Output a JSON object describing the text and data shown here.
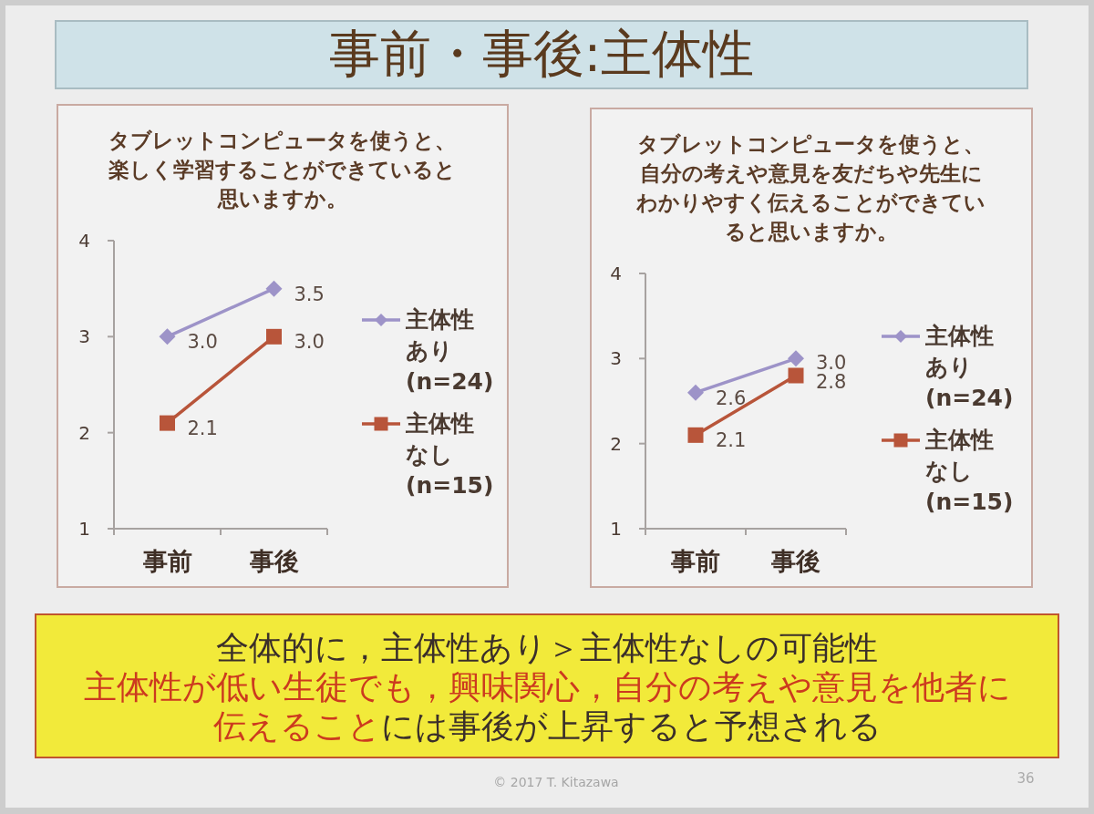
{
  "chart_data": [
    {
      "type": "other",
      "title": "事前・事後:主体性"
    },
    {
      "type": "line",
      "title": "タブレットコンピュータを使うと、楽しく学習することができていると思いますか。",
      "categories": [
        "事前",
        "事後"
      ],
      "series": [
        {
          "name": "主体性あり(n=24)",
          "color": "#9d93c8",
          "marker": "diamond",
          "values": [
            3.0,
            3.5
          ],
          "value_labels": [
            "3.0",
            "3.5"
          ]
        },
        {
          "name": "主体性なし(n=15)",
          "color": "#b8553a",
          "marker": "square",
          "values": [
            2.1,
            3.0
          ],
          "value_labels": [
            "2.1",
            "3.0"
          ]
        }
      ],
      "ylim": [
        1,
        4
      ],
      "yticks": [
        1,
        2,
        3,
        4
      ],
      "legend": "right"
    },
    {
      "type": "line",
      "title": "タブレットコンピュータを使うと、自分の考えや意見を友だちや先生にわかりやすく伝えることができていると思いますか。",
      "categories": [
        "事前",
        "事後"
      ],
      "series": [
        {
          "name": "主体性あり(n=24)",
          "color": "#9d93c8",
          "marker": "diamond",
          "values": [
            2.6,
            3.0
          ],
          "value_labels": [
            "2.6",
            "3.0"
          ]
        },
        {
          "name": "主体性なし(n=15)",
          "color": "#b8553a",
          "marker": "square",
          "values": [
            2.1,
            2.8
          ],
          "value_labels": [
            "2.1",
            "2.8"
          ]
        }
      ],
      "ylim": [
        1,
        4
      ],
      "yticks": [
        1,
        2,
        3,
        4
      ],
      "legend": "right"
    },
    {
      "type": "other",
      "annotations": [
        "全体的に，主体性あり＞主体性なしの可能性",
        "主体性が低い生徒でも，興味関心，自分の考えや意見を他者に",
        "伝えること",
        "には事後が上昇すると予想される"
      ]
    },
    {
      "type": "other",
      "annotations": [
        "© 2017 T. Kitazawa",
        "36"
      ]
    }
  ]
}
